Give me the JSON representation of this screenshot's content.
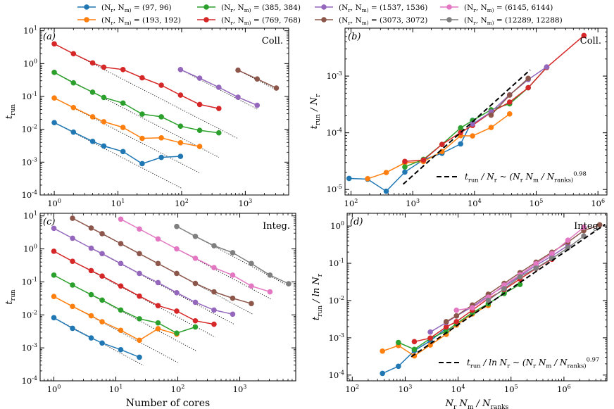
{
  "legend": [
    {
      "label": "(N_r, N_m) = (97, 96)",
      "color": "#1f77b4"
    },
    {
      "label": "(N_r, N_m) = (193, 192)",
      "color": "#ff7f0e"
    },
    {
      "label": "(N_r, N_m) = (385, 384)",
      "color": "#2ca02c"
    },
    {
      "label": "(N_r, N_m) = (769, 768)",
      "color": "#d62728"
    },
    {
      "label": "(N_r, N_m) = (1537, 1536)",
      "color": "#9467bd"
    },
    {
      "label": "(N_r, N_m) = (3073, 3072)",
      "color": "#8c564b"
    },
    {
      "label": "(N_r, N_m) = (6145, 6144)",
      "color": "#e377c2"
    },
    {
      "label": "(N_r, N_m) = (12289, 12288)",
      "color": "#7f7f7f"
    }
  ],
  "chart_data": [
    {
      "id": "a",
      "type": "line",
      "panel_label": "(a)",
      "annotation": "Coll.",
      "xscale": "log",
      "yscale": "log",
      "xlim": [
        0.6,
        4800
      ],
      "ylim": [
        0.0001,
        12
      ],
      "xticks": [
        1,
        10,
        100,
        1000
      ],
      "xtick_labels": [
        "10^0",
        "10^1",
        "10^2",
        "10^3"
      ],
      "yticks": [
        0.0001,
        0.001,
        0.01,
        0.1,
        1,
        10
      ],
      "ytick_labels": [
        "10^-4",
        "10^-3",
        "10^-2",
        "10^-1",
        "10^0",
        "10^1"
      ],
      "xlabel": "",
      "ylabel": "t_run",
      "series": [
        {
          "name": "(97, 96)",
          "color": "#1f77b4",
          "x": [
            1,
            2,
            4,
            6,
            12,
            24,
            48,
            96
          ],
          "y": [
            0.016,
            0.0082,
            0.0043,
            0.0031,
            0.0021,
            0.0009,
            0.0014,
            0.0015
          ]
        },
        {
          "name": "(193, 192)",
          "color": "#ff7f0e",
          "x": [
            1,
            2,
            4,
            6,
            12,
            24,
            48,
            96,
            192
          ],
          "y": [
            0.09,
            0.046,
            0.024,
            0.017,
            0.0114,
            0.0053,
            0.0055,
            0.0039,
            0.003
          ]
        },
        {
          "name": "(385, 384)",
          "color": "#2ca02c",
          "x": [
            1,
            2,
            4,
            6,
            12,
            24,
            48,
            96,
            192,
            384
          ],
          "y": [
            0.54,
            0.26,
            0.135,
            0.093,
            0.063,
            0.029,
            0.024,
            0.0125,
            0.0093,
            0.0078
          ]
        },
        {
          "name": "(769, 768)",
          "color": "#d62728",
          "x": [
            1,
            2,
            4,
            6,
            12,
            24,
            48,
            96,
            192,
            384
          ],
          "y": [
            4.0,
            2.0,
            1.05,
            0.78,
            0.66,
            0.37,
            0.22,
            0.11,
            0.057,
            0.043
          ]
        },
        {
          "name": "(1537, 1536)",
          "color": "#9467bd",
          "x": [
            96,
            192,
            384,
            768,
            1536
          ],
          "y": [
            0.66,
            0.36,
            0.19,
            0.095,
            0.054
          ]
        },
        {
          "name": "(3073, 3072)",
          "color": "#8c564b",
          "x": [
            768,
            1536,
            3072
          ],
          "y": [
            0.63,
            0.34,
            0.18
          ]
        }
      ],
      "ideal_lines": [
        {
          "x0": 1,
          "y0": 0.016,
          "x1": 100
        },
        {
          "x0": 1,
          "y0": 0.09,
          "x1": 192
        },
        {
          "x0": 1,
          "y0": 0.54,
          "x1": 384
        },
        {
          "x0": 1,
          "y0": 4.0,
          "x1": 768
        },
        {
          "x0": 96,
          "y0": 0.66,
          "x1": 1536
        },
        {
          "x0": 768,
          "y0": 0.63,
          "x1": 3072
        }
      ]
    },
    {
      "id": "b",
      "type": "line",
      "panel_label": "(b)",
      "annotation": "Coll.",
      "xscale": "log",
      "yscale": "log",
      "xlim": [
        80,
        1400000
      ],
      "ylim": [
        8e-06,
        0.007
      ],
      "xticks": [
        100,
        1000,
        10000,
        100000,
        1000000
      ],
      "xtick_labels": [
        "10^2",
        "10^3",
        "10^4",
        "10^5",
        "10^6"
      ],
      "yticks": [
        1e-05,
        0.0001,
        0.001
      ],
      "ytick_labels": [
        "10^-5",
        "10^-4",
        "10^-3"
      ],
      "xlabel": "",
      "ylabel": "t_run / N_r",
      "fit_label": "t_run / N_r ~ (N_r N_m / N_ranks)^0.98",
      "fit": {
        "exponent": 0.98,
        "x0": 700,
        "x1": 80000,
        "y0": 1.24e-05
      },
      "series": [
        {
          "name": "(97, 96)",
          "color": "#1f77b4",
          "x": [
            93,
            186,
            372,
            745,
            1490,
            2980,
            5960,
            9300
          ],
          "y": [
            1.57e-05,
            1.52e-05,
            9.3e-06,
            2.03e-05,
            3.35e-05,
            4.36e-05,
            6.36e-05,
            0.000166
          ]
        },
        {
          "name": "(193, 192)",
          "color": "#ff7f0e",
          "x": [
            186,
            372,
            745,
            1490,
            2980,
            5960,
            9300,
            18600,
            37100
          ],
          "y": [
            1.55e-05,
            1.99e-05,
            2.95e-05,
            3.11e-05,
            4.66e-05,
            8.9e-05,
            8.8e-05,
            0.000124,
            0.000215
          ]
        },
        {
          "name": "(385, 384)",
          "color": "#2ca02c",
          "x": [
            745,
            1490,
            2980,
            5960,
            9300,
            18600,
            37100,
            74200,
            148000
          ],
          "y": [
            2.5e-05,
            3.4e-05,
            6.24e-05,
            0.000122,
            0.000164,
            0.000255,
            0.000325,
            0.000624,
            0.00142
          ]
        },
        {
          "name": "(769, 768)",
          "color": "#d62728",
          "x": [
            745,
            1490,
            2980,
            5960,
            9300,
            18600,
            37100,
            74200,
            148000,
            593000
          ],
          "y": [
            3.13e-05,
            3.3e-05,
            6.24e-05,
            0.000101,
            0.000135,
            0.00023,
            0.000348,
            0.000624,
            0.00142,
            0.0052
          ]
        },
        {
          "name": "(1537, 1536)",
          "color": "#9467bd",
          "x": [
            9300,
            18600,
            37100,
            74200,
            148000
          ],
          "y": [
            0.000143,
            0.000234,
            0.000468,
            0.00087,
            0.00145
          ]
        },
        {
          "name": "(3073, 3072)",
          "color": "#8c564b",
          "x": [
            18600,
            37100,
            74200
          ],
          "y": [
            0.000205,
            0.000462,
            0.000911
          ]
        }
      ]
    },
    {
      "id": "c",
      "type": "line",
      "panel_label": "(c)",
      "annotation": "Integ.",
      "xscale": "log",
      "yscale": "log",
      "xlim": [
        0.6,
        8000
      ],
      "ylim": [
        0.0001,
        12
      ],
      "xticks": [
        1,
        10,
        100,
        1000
      ],
      "xtick_labels": [
        "10^0",
        "10^1",
        "10^2",
        "10^3"
      ],
      "yticks": [
        0.0001,
        0.001,
        0.01,
        0.1,
        1,
        10
      ],
      "ytick_labels": [
        "10^-4",
        "10^-3",
        "10^-2",
        "10^-1",
        "10^0",
        "10^1"
      ],
      "xlabel": "Number of cores",
      "ylabel": "t_run",
      "series": [
        {
          "name": "(97, 96)",
          "color": "#1f77b4",
          "x": [
            1,
            2,
            4,
            6,
            12,
            24
          ],
          "y": [
            0.0082,
            0.0039,
            0.002,
            0.0014,
            0.00088,
            0.00052
          ]
        },
        {
          "name": "(193, 192)",
          "color": "#ff7f0e",
          "x": [
            1,
            2,
            4,
            6,
            12,
            24,
            48,
            96
          ],
          "y": [
            0.036,
            0.018,
            0.0094,
            0.0062,
            0.0034,
            0.0017,
            0.0038,
            0.0026
          ]
        },
        {
          "name": "(385, 384)",
          "color": "#2ca02c",
          "x": [
            1,
            2,
            4,
            6,
            12,
            24,
            48,
            96,
            192
          ],
          "y": [
            0.16,
            0.08,
            0.041,
            0.028,
            0.014,
            0.0076,
            0.0057,
            0.0028,
            0.0043
          ]
        },
        {
          "name": "(769, 768)",
          "color": "#d62728",
          "x": [
            1,
            2,
            4,
            6,
            12,
            24,
            48,
            96,
            192,
            384
          ],
          "y": [
            0.85,
            0.42,
            0.22,
            0.15,
            0.075,
            0.037,
            0.019,
            0.013,
            0.0066,
            0.0052
          ]
        },
        {
          "name": "(1537, 1536)",
          "color": "#9467bd",
          "x": [
            1,
            2,
            4,
            6,
            12,
            24,
            48,
            96,
            192,
            384,
            768
          ],
          "y": [
            4.2,
            2.1,
            1.05,
            0.72,
            0.36,
            0.18,
            0.095,
            0.047,
            0.024,
            0.014,
            0.0105
          ]
        },
        {
          "name": "(3073, 3072)",
          "color": "#8c564b",
          "x": [
            2,
            4,
            6,
            12,
            24,
            48,
            96,
            192,
            384,
            768,
            1536
          ],
          "y": [
            8.5,
            4.3,
            2.9,
            1.45,
            0.72,
            0.36,
            0.18,
            0.09,
            0.05,
            0.032,
            0.022
          ]
        },
        {
          "name": "(6145, 6144)",
          "color": "#e377c2",
          "x": [
            12,
            24,
            48,
            96,
            192,
            384,
            768,
            1536,
            3072
          ],
          "y": [
            8.0,
            4.0,
            2.0,
            1.0,
            0.52,
            0.27,
            0.16,
            0.075,
            0.05
          ]
        },
        {
          "name": "(12289, 12288)",
          "color": "#7f7f7f",
          "x": [
            96,
            192,
            384,
            768,
            1536,
            3072,
            6144
          ],
          "y": [
            4.8,
            2.4,
            1.25,
            0.77,
            0.36,
            0.16,
            0.088
          ]
        }
      ],
      "ideal_lines": [
        {
          "x0": 1,
          "y0": 0.0082,
          "x1": 28
        },
        {
          "x0": 1,
          "y0": 0.036,
          "x1": 100
        },
        {
          "x0": 1,
          "y0": 0.16,
          "x1": 200
        },
        {
          "x0": 1,
          "y0": 0.85,
          "x1": 400
        },
        {
          "x0": 1,
          "y0": 4.2,
          "x1": 800
        },
        {
          "x0": 2,
          "y0": 8.5,
          "x1": 1600
        },
        {
          "x0": 12,
          "y0": 8.0,
          "x1": 3200
        },
        {
          "x0": 96,
          "y0": 4.8,
          "x1": 6400
        }
      ]
    },
    {
      "id": "d",
      "type": "line",
      "panel_label": "(d)",
      "annotation": "Integ.",
      "xscale": "log",
      "yscale": "log",
      "xlim": [
        80,
        6500000
      ],
      "ylim": [
        7e-05,
        2.2
      ],
      "xticks": [
        100,
        1000,
        10000,
        100000,
        1000000
      ],
      "xtick_labels": [
        "10^2",
        "10^3",
        "10^4",
        "10^5",
        "10^6"
      ],
      "yticks": [
        0.0001,
        0.001,
        0.01,
        0.1,
        1
      ],
      "ytick_labels": [
        "10^-4",
        "10^-3",
        "10^-2",
        "10^-1",
        "10^0"
      ],
      "xlabel": "N_r N_m / N_ranks",
      "ylabel": "t_run / ln N_r",
      "fit_label": "t_run / ln N_r ~ (N_r N_m / N_ranks)^0.97",
      "fit": {
        "exponent": 0.97,
        "x0": 1300,
        "x1": 6000000,
        "y0": 0.00031
      },
      "series": [
        {
          "name": "(97, 96)",
          "color": "#1f77b4",
          "x": [
            372,
            745,
            1490,
            2980,
            5960
          ],
          "y": [
            0.000111,
            0.000172,
            0.000452,
            0.00083,
            0.0018
          ]
        },
        {
          "name": "(193, 192)",
          "color": "#ff7f0e",
          "x": [
            372,
            745,
            1490,
            2980,
            5960,
            9300,
            18600,
            37100
          ],
          "y": [
            0.00044,
            0.00062,
            0.000328,
            0.000642,
            0.00124,
            0.0022,
            0.00438,
            0.00738
          ]
        },
        {
          "name": "(385, 384)",
          "color": "#2ca02c",
          "x": [
            745,
            1490,
            2980,
            5960,
            9300,
            18600,
            37100,
            74200,
            148000
          ],
          "y": [
            0.00075,
            0.00049,
            0.00096,
            0.0015,
            0.0024,
            0.0047,
            0.0082,
            0.0155,
            0.0271
          ]
        },
        {
          "name": "(769, 768)",
          "color": "#d62728",
          "x": [
            1490,
            2980,
            5960,
            9300,
            18600,
            37100,
            74200,
            148000,
            297000,
            593000
          ],
          "y": [
            0.00079,
            0.00098,
            0.00196,
            0.00272,
            0.0055,
            0.0113,
            0.0197,
            0.038,
            0.073,
            0.128
          ]
        },
        {
          "name": "(1537, 1536)",
          "color": "#9467bd",
          "x": [
            2980,
            5960,
            9300,
            18600,
            37100,
            74200,
            148000,
            297000,
            593000,
            1190000
          ],
          "y": [
            0.00143,
            0.00256,
            0.00385,
            0.0068,
            0.0133,
            0.0238,
            0.046,
            0.088,
            0.158,
            0.3
          ]
        },
        {
          "name": "(3073, 3072)",
          "color": "#8c564b",
          "x": [
            5960,
            9300,
            18600,
            37100,
            74200,
            148000,
            297000,
            593000,
            1190000,
            2370000,
            4740000
          ],
          "y": [
            0.00272,
            0.00388,
            0.0076,
            0.0148,
            0.0289,
            0.056,
            0.107,
            0.198,
            0.37,
            0.75,
            1.08
          ]
        },
        {
          "name": "(6145, 6144)",
          "color": "#e377c2",
          "x": [
            9300,
            18600,
            37100,
            74200,
            148000,
            297000,
            593000,
            1190000,
            2370000
          ],
          "y": [
            0.0055,
            0.0064,
            0.0123,
            0.0261,
            0.0492,
            0.098,
            0.182,
            0.418,
            0.93
          ]
        },
        {
          "name": "(12289, 12288)",
          "color": "#7f7f7f",
          "x": [
            37100,
            74200,
            148000,
            297000,
            593000,
            1190000,
            2370000
          ],
          "y": [
            0.0102,
            0.0208,
            0.0434,
            0.0742,
            0.135,
            0.26,
            0.54
          ]
        }
      ]
    }
  ]
}
